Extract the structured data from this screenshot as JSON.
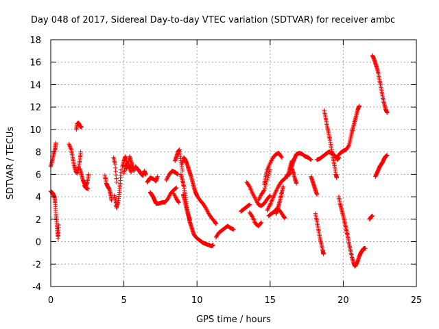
{
  "chart_data": {
    "type": "scatter",
    "title": "Day 048 of 2017, Sidereal Day-to-day VTEC variation (SDTVAR) for receiver ambc",
    "xlabel": "GPS time / hours",
    "ylabel": "SDTVAR / TECUs",
    "xlim": [
      0,
      25
    ],
    "ylim": [
      -4,
      18
    ],
    "x_ticks": [
      0,
      5,
      10,
      15,
      20,
      25
    ],
    "y_ticks": [
      -4,
      -2,
      0,
      2,
      4,
      6,
      8,
      10,
      12,
      14,
      16,
      18
    ],
    "grid": true,
    "marker": "+",
    "colors": {
      "marker": "#ff0000",
      "grid": "#a0a0a0",
      "axis": "#000000"
    },
    "segments": [
      [
        [
          0.0,
          6.7
        ],
        [
          0.1,
          7.2
        ],
        [
          0.2,
          7.8
        ],
        [
          0.3,
          8.3
        ],
        [
          0.35,
          8.8
        ]
      ],
      [
        [
          0.0,
          4.5
        ],
        [
          0.15,
          4.3
        ],
        [
          0.25,
          4.0
        ],
        [
          0.3,
          3.5
        ],
        [
          0.35,
          2.6
        ],
        [
          0.4,
          1.8
        ],
        [
          0.45,
          1.0
        ],
        [
          0.5,
          0.3
        ],
        [
          0.55,
          1.5
        ]
      ],
      [
        [
          1.25,
          8.7
        ],
        [
          1.4,
          8.2
        ],
        [
          1.5,
          7.5
        ],
        [
          1.6,
          6.8
        ],
        [
          1.7,
          6.3
        ],
        [
          1.8,
          6.1
        ],
        [
          1.9,
          6.6
        ],
        [
          2.0,
          7.3
        ],
        [
          2.05,
          8.0
        ]
      ],
      [
        [
          1.75,
          10.0
        ],
        [
          1.8,
          10.5
        ],
        [
          1.9,
          10.6
        ],
        [
          2.0,
          10.3
        ],
        [
          2.1,
          10.2
        ]
      ],
      [
        [
          2.0,
          6.5
        ],
        [
          2.1,
          6.0
        ],
        [
          2.2,
          5.5
        ],
        [
          2.3,
          5.2
        ],
        [
          2.4,
          5.0
        ],
        [
          2.5,
          5.3
        ],
        [
          2.6,
          6.0
        ]
      ],
      [
        [
          2.3,
          5.0
        ],
        [
          2.4,
          4.8
        ],
        [
          2.55,
          4.7
        ]
      ],
      [
        [
          3.7,
          5.9
        ],
        [
          3.8,
          5.2
        ],
        [
          3.9,
          4.9
        ],
        [
          4.0,
          4.7
        ],
        [
          4.1,
          4.2
        ],
        [
          4.15,
          3.7
        ]
      ],
      [
        [
          4.3,
          7.5
        ],
        [
          4.4,
          6.9
        ],
        [
          4.5,
          5.3
        ]
      ],
      [
        [
          4.35,
          4.1
        ],
        [
          4.45,
          3.6
        ],
        [
          4.5,
          3.0
        ],
        [
          4.6,
          3.5
        ],
        [
          4.7,
          4.4
        ],
        [
          4.75,
          5.2
        ],
        [
          4.8,
          6.4
        ]
      ],
      [
        [
          4.9,
          6.7
        ],
        [
          5.0,
          7.2
        ],
        [
          5.1,
          7.6
        ],
        [
          5.2,
          7.0
        ],
        [
          5.3,
          6.8
        ],
        [
          5.4,
          6.6
        ],
        [
          5.5,
          6.2
        ]
      ],
      [
        [
          5.0,
          6.1
        ],
        [
          5.1,
          6.8
        ],
        [
          5.2,
          6.5
        ],
        [
          5.4,
          7.6
        ],
        [
          5.5,
          7.1
        ],
        [
          5.6,
          6.7
        ],
        [
          5.7,
          6.3
        ]
      ],
      [
        [
          5.8,
          6.7
        ],
        [
          5.9,
          6.5
        ],
        [
          6.0,
          6.4
        ],
        [
          6.1,
          6.2
        ],
        [
          6.2,
          6.0
        ],
        [
          6.3,
          5.9
        ],
        [
          6.4,
          6.3
        ],
        [
          6.5,
          6.0
        ]
      ],
      [
        [
          6.6,
          5.3
        ],
        [
          6.7,
          5.5
        ],
        [
          6.8,
          5.7
        ],
        [
          7.0,
          5.6
        ],
        [
          7.2,
          5.4
        ],
        [
          7.3,
          5.8
        ]
      ],
      [
        [
          6.8,
          4.4
        ],
        [
          6.9,
          4.2
        ],
        [
          7.0,
          4.0
        ],
        [
          7.1,
          3.7
        ],
        [
          7.2,
          3.4
        ]
      ],
      [
        [
          7.2,
          3.4
        ],
        [
          7.4,
          3.4
        ],
        [
          7.6,
          3.5
        ],
        [
          7.8,
          3.5
        ],
        [
          8.0,
          3.8
        ],
        [
          8.2,
          4.3
        ],
        [
          8.4,
          4.6
        ],
        [
          8.6,
          4.8
        ]
      ],
      [
        [
          7.9,
          5.5
        ],
        [
          8.1,
          6.0
        ],
        [
          8.3,
          6.3
        ],
        [
          8.5,
          6.2
        ],
        [
          8.7,
          6.0
        ]
      ],
      [
        [
          8.4,
          4.3
        ],
        [
          8.6,
          3.8
        ],
        [
          8.75,
          3.5
        ]
      ],
      [
        [
          8.5,
          7.2
        ],
        [
          8.6,
          7.6
        ],
        [
          8.7,
          8.0
        ],
        [
          8.8,
          8.2
        ],
        [
          8.9,
          7.2
        ],
        [
          9.0,
          6.3
        ]
      ],
      [
        [
          8.9,
          6.0
        ],
        [
          9.0,
          5.5
        ],
        [
          9.1,
          4.9
        ],
        [
          9.2,
          4.1
        ],
        [
          9.3,
          3.2
        ],
        [
          9.4,
          2.4
        ],
        [
          9.5,
          1.8
        ],
        [
          9.6,
          1.4
        ],
        [
          9.7,
          1.0
        ],
        [
          9.8,
          0.6
        ],
        [
          10.0,
          0.3
        ],
        [
          10.2,
          0.1
        ],
        [
          10.4,
          -0.1
        ],
        [
          10.6,
          -0.2
        ],
        [
          10.8,
          -0.3
        ],
        [
          11.0,
          -0.4
        ],
        [
          11.1,
          -0.3
        ]
      ],
      [
        [
          9.0,
          7.0
        ],
        [
          9.1,
          7.5
        ],
        [
          9.2,
          7.3
        ],
        [
          9.3,
          7.0
        ],
        [
          9.4,
          6.6
        ],
        [
          9.5,
          6.2
        ],
        [
          9.6,
          5.8
        ],
        [
          9.7,
          5.3
        ],
        [
          9.8,
          4.8
        ],
        [
          9.9,
          4.4
        ],
        [
          10.0,
          4.1
        ],
        [
          10.2,
          3.7
        ],
        [
          10.4,
          3.4
        ],
        [
          10.6,
          3.0
        ],
        [
          10.8,
          2.5
        ],
        [
          11.0,
          2.1
        ],
        [
          11.2,
          1.8
        ],
        [
          11.3,
          1.6
        ]
      ],
      [
        [
          9.05,
          4.2
        ],
        [
          9.15,
          3.7
        ],
        [
          9.25,
          3.1
        ],
        [
          9.35,
          2.6
        ],
        [
          9.45,
          2.2
        ],
        [
          9.5,
          1.9
        ]
      ],
      [
        [
          11.3,
          0.4
        ],
        [
          11.5,
          0.8
        ],
        [
          11.7,
          1.0
        ],
        [
          11.9,
          1.2
        ],
        [
          12.1,
          1.4
        ],
        [
          12.3,
          1.2
        ],
        [
          12.5,
          1.1
        ]
      ],
      [
        [
          13.0,
          2.7
        ],
        [
          13.2,
          2.9
        ],
        [
          13.4,
          3.1
        ],
        [
          13.6,
          3.3
        ]
      ],
      [
        [
          13.4,
          5.3
        ],
        [
          13.6,
          4.9
        ],
        [
          13.8,
          4.3
        ],
        [
          14.0,
          3.8
        ],
        [
          14.2,
          3.3
        ],
        [
          14.4,
          3.2
        ],
        [
          14.6,
          3.4
        ],
        [
          14.8,
          3.8
        ],
        [
          15.0,
          4.1
        ]
      ],
      [
        [
          13.6,
          2.6
        ],
        [
          13.8,
          2.2
        ],
        [
          14.0,
          1.6
        ],
        [
          14.2,
          1.4
        ],
        [
          14.4,
          1.7
        ]
      ],
      [
        [
          14.2,
          3.7
        ],
        [
          14.4,
          4.2
        ],
        [
          14.6,
          4.6
        ],
        [
          14.8,
          5.5
        ],
        [
          15.0,
          6.4
        ]
      ],
      [
        [
          14.6,
          5.1
        ],
        [
          14.7,
          5.8
        ],
        [
          14.8,
          6.4
        ],
        [
          15.0,
          7.0
        ],
        [
          15.2,
          7.5
        ],
        [
          15.4,
          7.8
        ],
        [
          15.6,
          7.9
        ],
        [
          15.8,
          7.5
        ]
      ],
      [
        [
          14.8,
          2.8
        ],
        [
          15.0,
          3.3
        ],
        [
          15.2,
          3.9
        ],
        [
          15.4,
          4.5
        ],
        [
          15.6,
          5.0
        ],
        [
          15.8,
          5.4
        ],
        [
          16.0,
          5.6
        ],
        [
          16.2,
          6.0
        ],
        [
          16.4,
          6.1
        ]
      ],
      [
        [
          14.9,
          2.3
        ],
        [
          15.1,
          2.5
        ],
        [
          15.3,
          2.7
        ],
        [
          15.5,
          3.0
        ],
        [
          15.7,
          2.7
        ],
        [
          15.9,
          2.3
        ],
        [
          16.0,
          2.1
        ]
      ],
      [
        [
          15.4,
          2.5
        ],
        [
          15.5,
          2.8
        ],
        [
          15.6,
          3.3
        ],
        [
          15.7,
          3.8
        ],
        [
          15.8,
          4.4
        ],
        [
          15.9,
          4.9
        ]
      ],
      [
        [
          16.4,
          6.5
        ],
        [
          16.5,
          6.8
        ],
        [
          16.6,
          7.2
        ],
        [
          16.7,
          7.5
        ],
        [
          16.8,
          7.8
        ],
        [
          17.0,
          7.9
        ],
        [
          17.2,
          7.8
        ],
        [
          17.4,
          7.6
        ],
        [
          17.6,
          7.5
        ],
        [
          17.8,
          7.3
        ]
      ],
      [
        [
          16.2,
          5.8
        ],
        [
          16.3,
          6.3
        ],
        [
          16.4,
          6.8
        ],
        [
          16.5,
          7.2
        ]
      ],
      [
        [
          16.5,
          6.5
        ],
        [
          16.6,
          6.1
        ],
        [
          16.7,
          5.6
        ],
        [
          16.8,
          5.2
        ]
      ],
      [
        [
          17.8,
          5.8
        ],
        [
          17.9,
          5.4
        ],
        [
          18.0,
          5.0
        ],
        [
          18.1,
          4.6
        ],
        [
          18.2,
          4.2
        ]
      ],
      [
        [
          18.1,
          2.5
        ],
        [
          18.2,
          1.8
        ],
        [
          18.3,
          1.1
        ],
        [
          18.4,
          0.4
        ],
        [
          18.5,
          -0.2
        ],
        [
          18.6,
          -0.8
        ],
        [
          18.65,
          -1.1
        ]
      ],
      [
        [
          18.2,
          7.3
        ],
        [
          18.4,
          7.4
        ],
        [
          18.6,
          7.6
        ],
        [
          18.8,
          7.8
        ],
        [
          19.0,
          8.0
        ],
        [
          19.2,
          7.9
        ],
        [
          19.4,
          7.7
        ],
        [
          19.6,
          7.3
        ],
        [
          19.7,
          7.5
        ]
      ],
      [
        [
          18.7,
          11.7
        ],
        [
          18.8,
          11.0
        ],
        [
          18.9,
          10.3
        ],
        [
          19.0,
          9.7
        ],
        [
          19.1,
          9.0
        ],
        [
          19.2,
          8.2
        ],
        [
          19.3,
          7.5
        ],
        [
          19.4,
          6.8
        ],
        [
          19.5,
          6.0
        ],
        [
          19.55,
          5.7
        ]
      ],
      [
        [
          19.7,
          4.0
        ],
        [
          19.8,
          3.3
        ],
        [
          19.9,
          2.8
        ],
        [
          20.0,
          2.3
        ],
        [
          20.1,
          1.7
        ],
        [
          20.2,
          1.1
        ],
        [
          20.3,
          0.5
        ],
        [
          20.4,
          -0.2
        ],
        [
          20.5,
          -0.8
        ],
        [
          20.6,
          -1.4
        ],
        [
          20.7,
          -1.9
        ],
        [
          20.8,
          -2.2
        ],
        [
          20.9,
          -2.0
        ],
        [
          21.0,
          -1.7
        ],
        [
          21.1,
          -1.3
        ],
        [
          21.2,
          -1.0
        ],
        [
          21.3,
          -0.8
        ],
        [
          21.4,
          -0.6
        ],
        [
          21.5,
          -0.6
        ]
      ],
      [
        [
          19.6,
          7.6
        ],
        [
          19.8,
          7.9
        ],
        [
          20.0,
          8.1
        ],
        [
          20.2,
          8.2
        ],
        [
          20.4,
          8.6
        ],
        [
          20.5,
          9.2
        ],
        [
          20.6,
          9.8
        ],
        [
          20.7,
          10.3
        ],
        [
          20.8,
          10.8
        ],
        [
          20.9,
          11.3
        ],
        [
          21.0,
          11.8
        ],
        [
          21.1,
          12.1
        ]
      ],
      [
        [
          21.8,
          2.0
        ],
        [
          21.9,
          2.2
        ],
        [
          22.0,
          2.3
        ]
      ],
      [
        [
          22.0,
          16.6
        ],
        [
          22.1,
          16.3
        ],
        [
          22.2,
          15.9
        ],
        [
          22.3,
          15.5
        ],
        [
          22.4,
          15.0
        ],
        [
          22.5,
          14.3
        ],
        [
          22.6,
          13.6
        ],
        [
          22.7,
          12.9
        ],
        [
          22.8,
          12.3
        ],
        [
          22.9,
          11.8
        ],
        [
          23.0,
          11.5
        ]
      ],
      [
        [
          22.2,
          5.8
        ],
        [
          22.3,
          6.1
        ],
        [
          22.4,
          6.4
        ],
        [
          22.5,
          6.7
        ],
        [
          22.6,
          6.9
        ],
        [
          22.7,
          7.1
        ],
        [
          22.8,
          7.4
        ],
        [
          22.9,
          7.6
        ],
        [
          23.0,
          7.7
        ]
      ]
    ]
  }
}
